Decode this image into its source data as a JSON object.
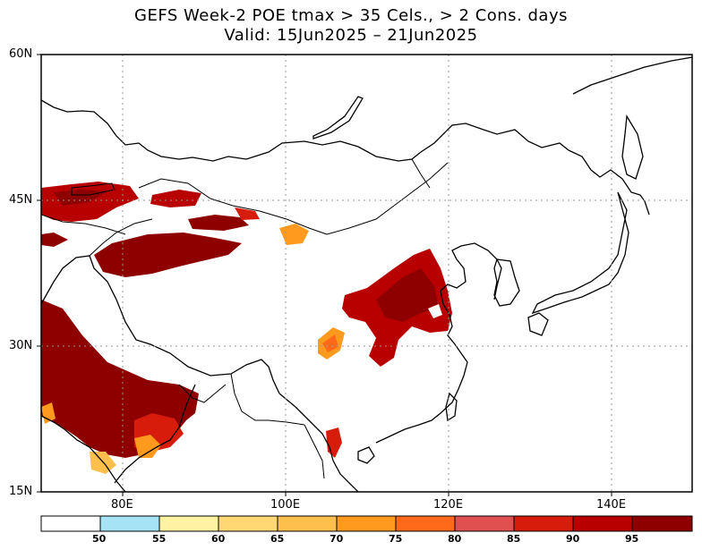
{
  "title": {
    "line1": "GEFS Week-2 POE tmax > 35 Cels., > 2 Cons. days",
    "line2": "Valid: 15Jun2025 – 21Jun2025"
  },
  "axes": {
    "lat_labels": [
      "60N",
      "45N",
      "30N",
      "15N"
    ],
    "lon_labels": [
      "80E",
      "100E",
      "120E",
      "140E"
    ],
    "lat_range": [
      15,
      60
    ],
    "lon_range": [
      70,
      150
    ],
    "grid": "dotted"
  },
  "colorbar": {
    "thresholds": [
      "50",
      "55",
      "60",
      "65",
      "70",
      "75",
      "80",
      "85",
      "90",
      "95"
    ],
    "colors": [
      "#ffffff",
      "#a6e3f5",
      "#fff3a3",
      "#ffd873",
      "#ffbf4d",
      "#ff9a1f",
      "#ff6a1a",
      "#e05050",
      "#d81c0c",
      "#b80000",
      "#8e0000"
    ]
  }
}
